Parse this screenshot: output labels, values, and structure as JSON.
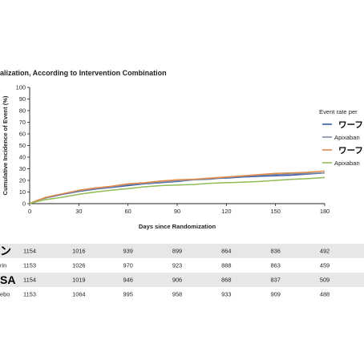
{
  "title": "alization, According to Intervention Combination",
  "colors": {
    "series": [
      "#3f5ea8",
      "#7b8aa3",
      "#e58b4a",
      "#8fbc54"
    ],
    "axis": "#231f20",
    "row_band": "#e6e7e8"
  },
  "legend": {
    "heading": "Event rate per",
    "entries": [
      {
        "text": "ワーフ",
        "style": "jp",
        "color": "#3f5ea8"
      },
      {
        "text": "Apixaban",
        "style": "normal",
        "color": "#7b8aa3"
      },
      {
        "text": "ワーファ",
        "style": "jp",
        "color": "#e58b4a"
      },
      {
        "text": "Apixaban",
        "style": "normal",
        "color": "#8fbc54"
      }
    ]
  },
  "chart_data": {
    "type": "line",
    "title": "alization, According to Intervention Combination",
    "xlabel": "Days since Randomization",
    "ylabel": "Cumulative Incidence of Event (%)",
    "xlim": [
      0,
      180
    ],
    "ylim": [
      0,
      100
    ],
    "x_ticks": [
      "0",
      "30",
      "60",
      "90",
      "120",
      "150",
      "180"
    ],
    "y_ticks": [
      "0",
      "10",
      "20",
      "30",
      "40",
      "50",
      "60",
      "70",
      "80",
      "90",
      "100"
    ],
    "x": [
      0,
      5,
      10,
      15,
      20,
      30,
      40,
      50,
      60,
      70,
      80,
      90,
      100,
      110,
      120,
      130,
      140,
      150,
      160,
      170,
      180
    ],
    "series": [
      {
        "values": [
          0,
          3.0,
          5.0,
          6.5,
          8.0,
          10.5,
          12.5,
          14.0,
          15.5,
          17.0,
          18.0,
          19.0,
          20.5,
          21.5,
          22.0,
          23.0,
          23.5,
          24.0,
          24.5,
          25.5,
          26.5
        ]
      },
      {
        "values": [
          0,
          3.0,
          5.0,
          7.0,
          8.5,
          11.0,
          13.0,
          14.5,
          16.5,
          17.5,
          18.5,
          19.5,
          20.5,
          21.0,
          22.5,
          23.5,
          24.5,
          25.0,
          25.5,
          26.0,
          26.5
        ]
      },
      {
        "values": [
          0,
          3.0,
          5.5,
          7.0,
          8.5,
          11.5,
          13.5,
          15.0,
          17.0,
          18.0,
          19.5,
          20.5,
          21.0,
          22.0,
          23.0,
          24.0,
          25.0,
          26.0,
          26.5,
          27.0,
          28.0
        ]
      },
      {
        "values": [
          0,
          2.0,
          3.5,
          4.5,
          5.5,
          8.0,
          10.0,
          11.5,
          13.0,
          14.5,
          15.5,
          16.0,
          16.5,
          17.5,
          18.0,
          18.5,
          19.0,
          20.0,
          21.0,
          21.5,
          22.5
        ]
      }
    ],
    "grid": false,
    "legend_position": "right"
  },
  "risk_table": {
    "rows": [
      {
        "label": "ン",
        "label_style": "jp",
        "banded": true,
        "values": [
          "1154",
          "1016",
          "939",
          "899",
          "864",
          "836",
          "492"
        ]
      },
      {
        "label": "rin",
        "label_style": "normal",
        "banded": false,
        "values": [
          "1153",
          "1026",
          "970",
          "923",
          "888",
          "863",
          "459"
        ]
      },
      {
        "label": "SA",
        "label_style": "jp",
        "banded": true,
        "values": [
          "1154",
          "1019",
          "946",
          "906",
          "868",
          "837",
          "509"
        ]
      },
      {
        "label": "ebo",
        "label_style": "normal",
        "banded": false,
        "values": [
          "1153",
          "1064",
          "995",
          "958",
          "933",
          "909",
          "488"
        ]
      }
    ]
  }
}
